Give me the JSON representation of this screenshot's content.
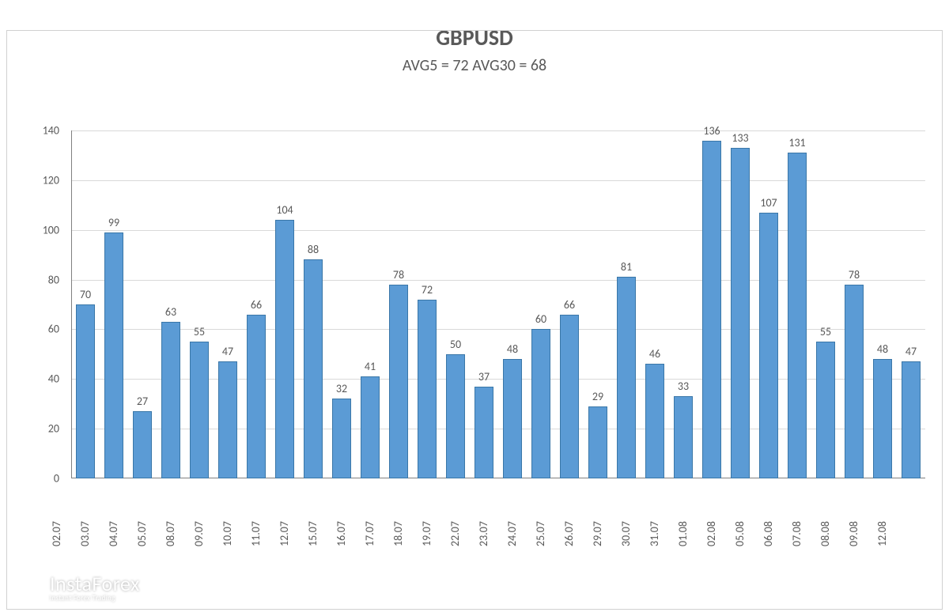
{
  "chart": {
    "type": "bar",
    "title": "GBPUSD",
    "subtitle": "AVG5 = 72 AVG30 = 68",
    "title_fontsize": 28,
    "subtitle_fontsize": 20,
    "title_color": "#595959",
    "categories": [
      "02.07",
      "03.07",
      "04.07",
      "05.07",
      "08.07",
      "09.07",
      "10.07",
      "11.07",
      "12.07",
      "15.07",
      "16.07",
      "17.07",
      "18.07",
      "19.07",
      "22.07",
      "23.07",
      "24.07",
      "25.07",
      "26.07",
      "29.07",
      "30.07",
      "31.07",
      "01.08",
      "02.08",
      "05.08",
      "06.08",
      "07.08",
      "08.08",
      "09.08",
      "12.08"
    ],
    "values": [
      70,
      99,
      27,
      63,
      55,
      47,
      66,
      104,
      88,
      32,
      41,
      78,
      72,
      50,
      37,
      48,
      60,
      66,
      29,
      81,
      46,
      33,
      136,
      133,
      107,
      131,
      55,
      78,
      48,
      47
    ],
    "bar_fill_color": "#5b9bd5",
    "bar_border_color": "#3a77a8",
    "bar_width": 0.7,
    "ylim": [
      0,
      140
    ],
    "ytick_step": 20,
    "yticks": [
      0,
      20,
      40,
      60,
      80,
      100,
      120,
      140
    ],
    "grid_color": "#d9d9d9",
    "axis_color": "#808080",
    "label_color": "#595959",
    "label_fontsize": 14,
    "background_color": "#ffffff",
    "border_color": "#d0d0d0",
    "x_label_rotation": -90,
    "data_labels_visible": true,
    "data_label_fontsize": 14,
    "data_label_color": "#595959"
  },
  "watermark": {
    "brand": "InstaForex",
    "tagline": "Instant Forex Trading",
    "icon_color": "#ffffff",
    "text_color": "#ffffff",
    "brand_fontsize": 26,
    "tagline_fontsize": 9,
    "opacity": 0.75
  }
}
